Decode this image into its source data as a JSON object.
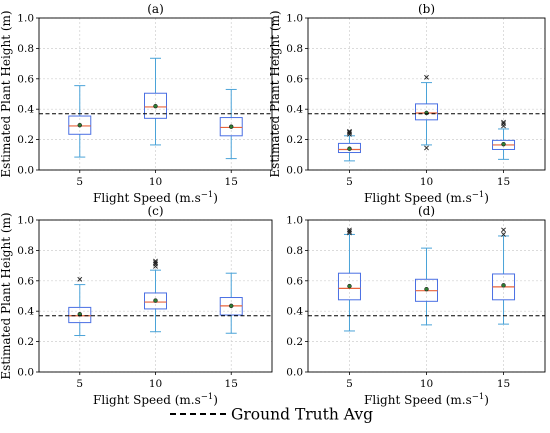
{
  "chart_data": {
    "type": "box",
    "figure_legend": {
      "label": "Ground Truth Avg",
      "line_style": "dashed",
      "placement": "bottom-center"
    },
    "ground_truth_avg": 0.37,
    "colors": {
      "box": "#4a6fe3",
      "whisker": "#4aa3d8",
      "median": "#e8643c",
      "mean": "#2e7d32",
      "outlier": "#222222",
      "reference_line": "#000000",
      "grid": "#cfcfcf"
    },
    "panels": [
      {
        "title": "(a)",
        "xlabel": "Flight Speed (m.s",
        "xlabel_superscript": "−1",
        "xlabel_suffix": ")",
        "ylabel": "Estimated Plant Height (m)",
        "ylim": [
          0,
          1
        ],
        "yticks": [
          "0.0",
          "0.2",
          "0.4",
          "0.6",
          "0.8",
          "1.0"
        ],
        "grid": true,
        "categories": [
          "5",
          "10",
          "15"
        ],
        "boxes": [
          {
            "whisker_low": 0.085,
            "q1": 0.235,
            "median": 0.29,
            "q3": 0.355,
            "whisker_high": 0.555,
            "mean": 0.295,
            "outliers": []
          },
          {
            "whisker_low": 0.165,
            "q1": 0.34,
            "median": 0.415,
            "q3": 0.505,
            "whisker_high": 0.735,
            "mean": 0.42,
            "outliers": []
          },
          {
            "whisker_low": 0.075,
            "q1": 0.225,
            "median": 0.28,
            "q3": 0.345,
            "whisker_high": 0.53,
            "mean": 0.285,
            "outliers": []
          }
        ]
      },
      {
        "title": "(b)",
        "xlabel": "Flight Speed (m.s",
        "xlabel_superscript": "−1",
        "xlabel_suffix": ")",
        "ylabel": "Estimated Plant Height (m)",
        "ylim": [
          0,
          1
        ],
        "yticks": [
          "0.0",
          "0.2",
          "0.4",
          "0.6",
          "0.8",
          "1.0"
        ],
        "grid": true,
        "categories": [
          "5",
          "10",
          "15"
        ],
        "boxes": [
          {
            "whisker_low": 0.06,
            "q1": 0.115,
            "median": 0.135,
            "q3": 0.175,
            "whisker_high": 0.225,
            "mean": 0.14,
            "outliers": [
              0.235,
              0.245,
              0.25,
              0.255
            ]
          },
          {
            "whisker_low": 0.165,
            "q1": 0.33,
            "median": 0.375,
            "q3": 0.435,
            "whisker_high": 0.575,
            "mean": 0.375,
            "outliers": [
              0.145,
              0.61
            ]
          },
          {
            "whisker_low": 0.07,
            "q1": 0.135,
            "median": 0.165,
            "q3": 0.195,
            "whisker_high": 0.27,
            "mean": 0.17,
            "outliers": [
              0.29,
              0.305,
              0.315
            ]
          }
        ]
      },
      {
        "title": "(c)",
        "xlabel": "Flight Speed (m.s",
        "xlabel_superscript": "−1",
        "xlabel_suffix": ")",
        "ylabel": "Estimated Plant Height (m)",
        "ylim": [
          0,
          1
        ],
        "yticks": [
          "0.0",
          "0.2",
          "0.4",
          "0.6",
          "0.8",
          "1.0"
        ],
        "grid": true,
        "categories": [
          "5",
          "10",
          "15"
        ],
        "boxes": [
          {
            "whisker_low": 0.24,
            "q1": 0.325,
            "median": 0.37,
            "q3": 0.425,
            "whisker_high": 0.575,
            "mean": 0.38,
            "outliers": [
              0.61
            ]
          },
          {
            "whisker_low": 0.265,
            "q1": 0.415,
            "median": 0.46,
            "q3": 0.52,
            "whisker_high": 0.67,
            "mean": 0.47,
            "outliers": [
              0.695,
              0.71,
              0.72,
              0.73
            ]
          },
          {
            "whisker_low": 0.255,
            "q1": 0.375,
            "median": 0.435,
            "q3": 0.49,
            "whisker_high": 0.65,
            "mean": 0.435,
            "outliers": []
          }
        ]
      },
      {
        "title": "(d)",
        "xlabel": "Flight Speed (m.s",
        "xlabel_superscript": "−1",
        "xlabel_suffix": ")",
        "ylabel": "",
        "ylim": [
          0,
          1
        ],
        "yticks": [
          "0.0",
          "0.2",
          "0.4",
          "0.6",
          "0.8",
          "1.0"
        ],
        "grid": true,
        "categories": [
          "5",
          "10",
          "15"
        ],
        "boxes": [
          {
            "whisker_low": 0.27,
            "q1": 0.475,
            "median": 0.55,
            "q3": 0.65,
            "whisker_high": 0.905,
            "mean": 0.565,
            "outliers": [
              0.915,
              0.925,
              0.935
            ]
          },
          {
            "whisker_low": 0.31,
            "q1": 0.465,
            "median": 0.535,
            "q3": 0.61,
            "whisker_high": 0.815,
            "mean": 0.545,
            "outliers": []
          },
          {
            "whisker_low": 0.315,
            "q1": 0.475,
            "median": 0.56,
            "q3": 0.645,
            "whisker_high": 0.895,
            "mean": 0.57,
            "outliers": [
              0.905,
              0.935
            ]
          }
        ]
      }
    ]
  }
}
